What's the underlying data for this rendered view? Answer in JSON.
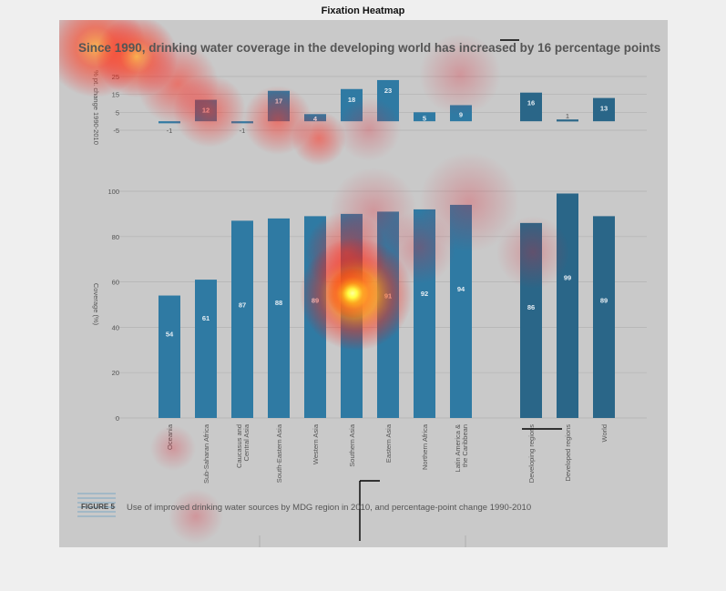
{
  "window": {
    "title": "Fixation Heatmap"
  },
  "figure": {
    "headline": "Since 1990, drinking water coverage in the developing world has increased by 16 percentage points",
    "caption_label": "FIGURE 5",
    "caption_text": "Use of improved drinking water sources by MDG region in 2010, and percentage-point change 1990-2010"
  },
  "chart_data": [
    {
      "type": "bar",
      "title": "",
      "ylabel": "% pt. change 1990-2010",
      "ylim": [
        -5,
        25
      ],
      "yticks": [
        25,
        15,
        5,
        -5
      ],
      "grid": true,
      "categories": [
        "Oceania",
        "Sub-Saharan Africa",
        "Caucasus and Central Asia",
        "South-Eastern Asia",
        "Western Asia",
        "Southern Asia",
        "Eastern Asia",
        "Northern Africa",
        "Latin America & the Caribbean",
        "Developing regions",
        "Developed regions",
        "World"
      ],
      "values": [
        -1,
        12,
        -1,
        17,
        4,
        18,
        23,
        5,
        9,
        16,
        1,
        13
      ],
      "value_labels": [
        "-1",
        "12",
        "-1",
        "17",
        "4",
        "18",
        "23",
        "5",
        "9",
        "16",
        "1",
        "13"
      ]
    },
    {
      "type": "bar",
      "title": "",
      "ylabel": "Coverage (%)",
      "ylim": [
        0,
        100
      ],
      "yticks": [
        100,
        80,
        60,
        40,
        20,
        0
      ],
      "grid": true,
      "categories": [
        "Oceania",
        "Sub-Saharan Africa",
        "Caucasus and Central Asia",
        "South-Eastern Asia",
        "Western Asia",
        "Southern Asia",
        "Eastern Asia",
        "Northern Africa",
        "Latin America & the Caribbean",
        "Developing regions",
        "Developed regions",
        "World"
      ],
      "values": [
        54,
        61,
        87,
        88,
        89,
        90,
        91,
        92,
        94,
        86,
        99,
        89
      ],
      "value_labels": [
        "54",
        "61",
        "87",
        "88",
        "89",
        "90",
        "91",
        "92",
        "94",
        "86",
        "99",
        "89"
      ]
    }
  ],
  "colors": {
    "bar": "#2f7aa3",
    "bar_dark": "#2a6688",
    "grid": "#b2b2b2",
    "heat_hot": "#ffff66",
    "heat_mid": "#ff3b1f"
  }
}
